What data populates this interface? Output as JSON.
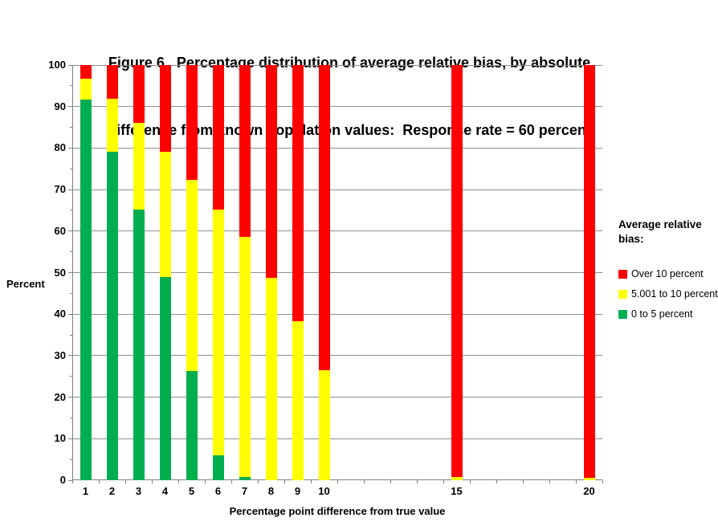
{
  "title": {
    "line1": "Figure 6.  Percentage distribution of average relative bias, by absolute",
    "line2": "difference from known population values:  Response rate = 60 percent"
  },
  "legend": {
    "title": "Average relative bias:",
    "items": [
      {
        "label": "Over 10 percent",
        "color": "#FF0000"
      },
      {
        "label": "5.001 to 10 percent",
        "color": "#FFFF00"
      },
      {
        "label": "0 to 5 percent",
        "color": "#00AE50"
      }
    ]
  },
  "chart_data": {
    "type": "bar",
    "stacked": true,
    "title": "Figure 6.  Percentage distribution of average relative bias, by absolute difference from known population values:  Response rate = 60 percent",
    "xlabel": "Percentage point difference from true value",
    "ylabel": "Percent",
    "ylim": [
      0,
      100
    ],
    "ytick_major_step": 10,
    "ytick_minor_step": 5,
    "grid": true,
    "gridline_color": "#8e8e8e",
    "axis_color": "#7f7f7f",
    "x_axis_range": [
      0.5,
      20.5
    ],
    "x_axis_tick_every": 1,
    "categories": [
      1,
      2,
      3,
      4,
      5,
      6,
      7,
      8,
      9,
      10,
      15,
      20
    ],
    "series_order_bottom_to_top": [
      "0 to 5 percent",
      "5.001 to 10 percent",
      "Over 10 percent"
    ],
    "series": [
      {
        "name": "0 to 5 percent",
        "color": "#00AE50",
        "values": [
          91.7,
          79.2,
          65.2,
          49.0,
          26.4,
          6.0,
          0.7,
          0,
          0,
          0,
          0,
          0
        ]
      },
      {
        "name": "5.001 to 10 percent",
        "color": "#FFFF00",
        "values": [
          5.0,
          12.7,
          20.9,
          30.2,
          46.0,
          59.2,
          58.0,
          48.8,
          38.3,
          26.5,
          0.8,
          0.5
        ]
      },
      {
        "name": "Over 10 percent",
        "color": "#FF0000",
        "values": [
          3.3,
          8.1,
          13.9,
          20.8,
          27.6,
          34.8,
          41.3,
          51.2,
          61.7,
          73.5,
          99.2,
          99.5
        ]
      }
    ],
    "legend_title": "Average relative bias:",
    "legend_position": "right"
  }
}
